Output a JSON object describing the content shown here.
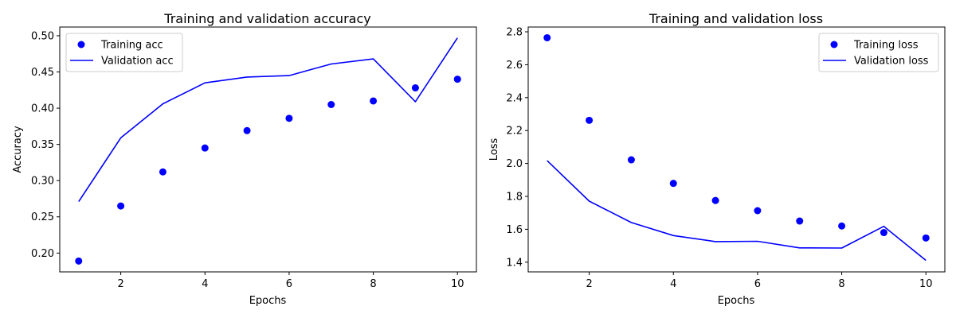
{
  "chart_data": [
    {
      "type": "line",
      "title": "Training and validation accuracy",
      "xlabel": "Epochs",
      "ylabel": "Accuracy",
      "xlim": [
        0.55,
        10.45
      ],
      "ylim": [
        0.174,
        0.512
      ],
      "xticks": [
        2,
        4,
        6,
        8,
        10
      ],
      "yticks": [
        0.2,
        0.25,
        0.3,
        0.35,
        0.4,
        0.45,
        0.5
      ],
      "ytick_labels": [
        "0.20",
        "0.25",
        "0.30",
        "0.35",
        "0.40",
        "0.45",
        "0.50"
      ],
      "grid": false,
      "legend_position": "upper-left",
      "x": [
        1,
        2,
        3,
        4,
        5,
        6,
        7,
        8,
        9,
        10
      ],
      "series": [
        {
          "name": "Training acc",
          "style": "markers",
          "color": "#0000ff",
          "values": [
            0.189,
            0.265,
            0.312,
            0.345,
            0.369,
            0.386,
            0.405,
            0.41,
            0.428,
            0.44
          ]
        },
        {
          "name": "Validation acc",
          "style": "line",
          "color": "#0000ff",
          "values": [
            0.271,
            0.359,
            0.406,
            0.435,
            0.443,
            0.445,
            0.461,
            0.468,
            0.409,
            0.497
          ]
        }
      ]
    },
    {
      "type": "line",
      "title": "Training and validation loss",
      "xlabel": "Epochs",
      "ylabel": "Loss",
      "xlim": [
        0.55,
        10.45
      ],
      "ylim": [
        1.341,
        2.829
      ],
      "xticks": [
        2,
        4,
        6,
        8,
        10
      ],
      "yticks": [
        1.4,
        1.6,
        1.8,
        2.0,
        2.2,
        2.4,
        2.6,
        2.8
      ],
      "ytick_labels": [
        "1.4",
        "1.6",
        "1.8",
        "2.0",
        "2.2",
        "2.4",
        "2.6",
        "2.8"
      ],
      "grid": false,
      "legend_position": "upper-right",
      "x": [
        1,
        2,
        3,
        4,
        5,
        6,
        7,
        8,
        9,
        10
      ],
      "series": [
        {
          "name": "Training loss",
          "style": "markers",
          "color": "#0000ff",
          "values": [
            2.764,
            2.262,
            2.022,
            1.879,
            1.775,
            1.713,
            1.65,
            1.62,
            1.58,
            1.547
          ]
        },
        {
          "name": "Validation loss",
          "style": "line",
          "color": "#0000ff",
          "values": [
            2.017,
            1.771,
            1.641,
            1.562,
            1.525,
            1.527,
            1.487,
            1.486,
            1.618,
            1.411
          ]
        }
      ]
    }
  ]
}
